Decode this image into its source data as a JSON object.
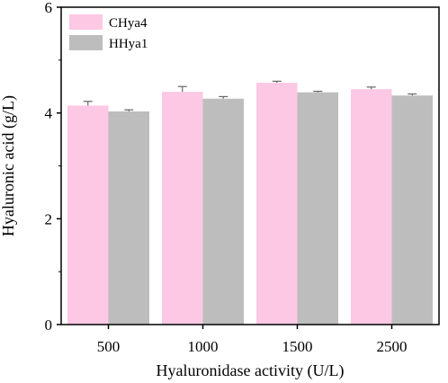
{
  "chart_data": {
    "type": "bar",
    "xlabel": "Hyaluronidase activity (U/L)",
    "ylabel": "Hyaluronic acid (g/L)",
    "ylim": [
      0,
      6
    ],
    "yticks": [
      0,
      2,
      4,
      6
    ],
    "categories": [
      "500",
      "1000",
      "1500",
      "2500"
    ],
    "series": [
      {
        "name": "CHya4",
        "color": "#fcc8e4",
        "values": [
          4.14,
          4.4,
          4.57,
          4.45
        ],
        "errors": [
          0.08,
          0.1,
          0.03,
          0.04
        ]
      },
      {
        "name": "HHya1",
        "color": "#bdbdbd",
        "values": [
          4.03,
          4.27,
          4.39,
          4.33
        ],
        "errors": [
          0.03,
          0.04,
          0.02,
          0.03
        ]
      }
    ],
    "legend": "top-left",
    "grid": false
  }
}
